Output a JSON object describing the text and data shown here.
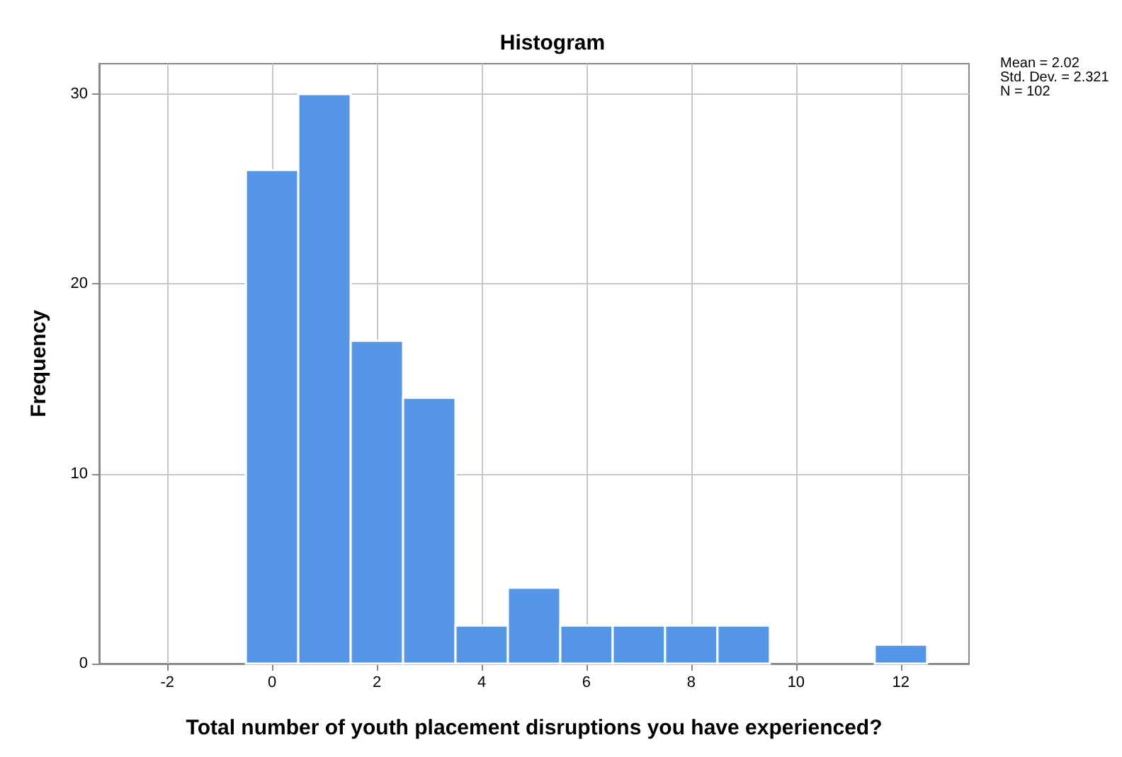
{
  "chart_data": {
    "type": "histogram",
    "title": "Histogram",
    "xlabel": "Total number of youth placement disruptions you have experienced?",
    "ylabel": "Frequency",
    "bins": [
      -0.5,
      0.5,
      1.5,
      2.5,
      3.5,
      4.5,
      5.5,
      6.5,
      7.5,
      8.5,
      9.5,
      10.5,
      11.5,
      12.5
    ],
    "values": [
      26,
      30,
      17,
      14,
      2,
      4,
      2,
      2,
      2,
      2,
      0,
      0,
      1
    ],
    "color": "#5596e6",
    "xlim": [
      -3.3,
      13.3
    ],
    "xticks": [
      -2,
      0,
      2,
      4,
      6,
      8,
      10,
      12
    ],
    "ylim": [
      0,
      31.6
    ],
    "yticks": [
      0,
      10,
      20,
      30
    ],
    "grid": true,
    "annotations": [
      "Mean = 2.02",
      "Std. Dev. = 2.321",
      "N = 102"
    ]
  }
}
